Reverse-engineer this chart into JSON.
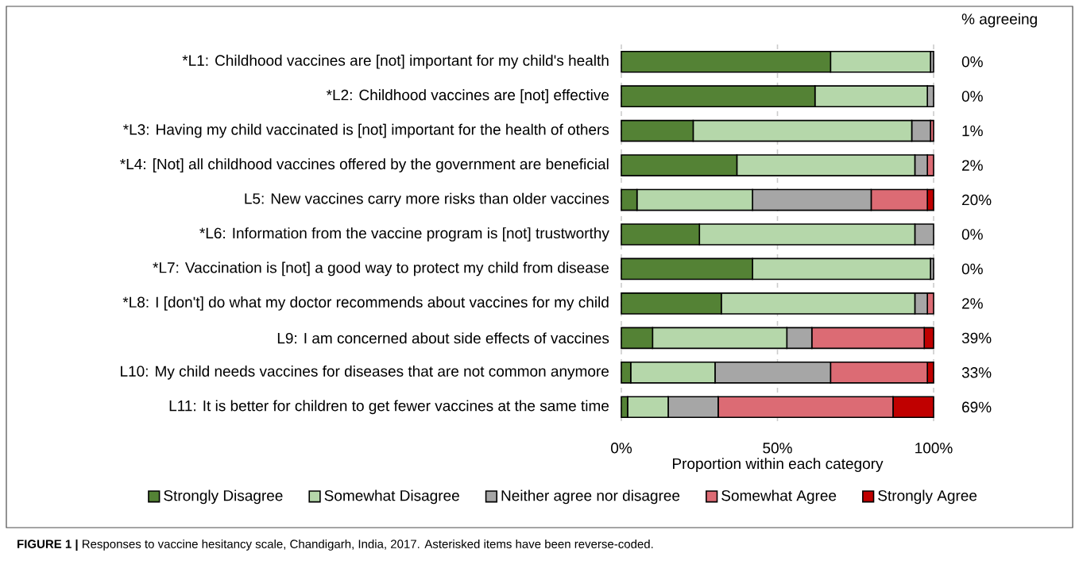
{
  "chart_data": {
    "type": "bar",
    "orientation": "horizontal",
    "stacked": true,
    "categories": [
      "*L1: Childhood vaccines are [not] important for my child's health",
      "*L2: Childhood vaccines are [not] effective",
      "*L3: Having my child vaccinated is [not] important for the health of others",
      "*L4: [Not] all childhood vaccines offered by the government are beneficial",
      "L5: New vaccines carry more risks than older vaccines",
      "*L6: Information from the vaccine program is [not] trustworthy",
      "*L7: Vaccination is [not] a good way to protect my child from disease",
      "*L8: I [don't] do what my doctor recommends about vaccines for my child",
      "L9: I am concerned about side effects of vaccines",
      "L10: My child needs vaccines for diseases that are not common anymore",
      "L11: It is better for children to get fewer vaccines at the same time"
    ],
    "series": [
      {
        "name": "Strongly Disagree",
        "color": "#548235",
        "values": [
          67,
          62,
          23,
          37,
          5,
          25,
          42,
          32,
          10,
          3,
          2
        ]
      },
      {
        "name": "Somewhat Disagree",
        "color": "#b5d7aa",
        "values": [
          32,
          36,
          70,
          57,
          37,
          69,
          57,
          62,
          43,
          27,
          13
        ]
      },
      {
        "name": "Neither agree nor disagree",
        "color": "#a6a6a6",
        "values": [
          1,
          2,
          6,
          4,
          38,
          6,
          1,
          4,
          8,
          37,
          16
        ]
      },
      {
        "name": "Somewhat Agree",
        "color": "#dc6b74",
        "values": [
          0,
          0,
          1,
          2,
          18,
          0,
          0,
          2,
          36,
          31,
          56
        ]
      },
      {
        "name": "Strongly Agree",
        "color": "#c00000",
        "values": [
          0,
          0,
          0,
          0,
          2,
          0,
          0,
          0,
          3,
          2,
          13
        ]
      }
    ],
    "xlim": [
      0,
      100
    ],
    "xticks": [
      {
        "value": 0,
        "label": "0%"
      },
      {
        "value": 50,
        "label": "50%"
      },
      {
        "value": 100,
        "label": "100%"
      }
    ],
    "xlabel": "Proportion within each category",
    "grid": "x",
    "legend": "bottom",
    "annotations": [
      "% agreeing",
      "0%",
      "0%",
      "1%",
      "2%",
      "20%",
      "0%",
      "0%",
      "2%",
      "39%",
      "33%",
      "69%",
      "**FIGURE 1 |** Responses to vaccine hesitancy scale, Chandigarh, India, 2017. Asterisked items have been reverse-coded."
    ]
  }
}
